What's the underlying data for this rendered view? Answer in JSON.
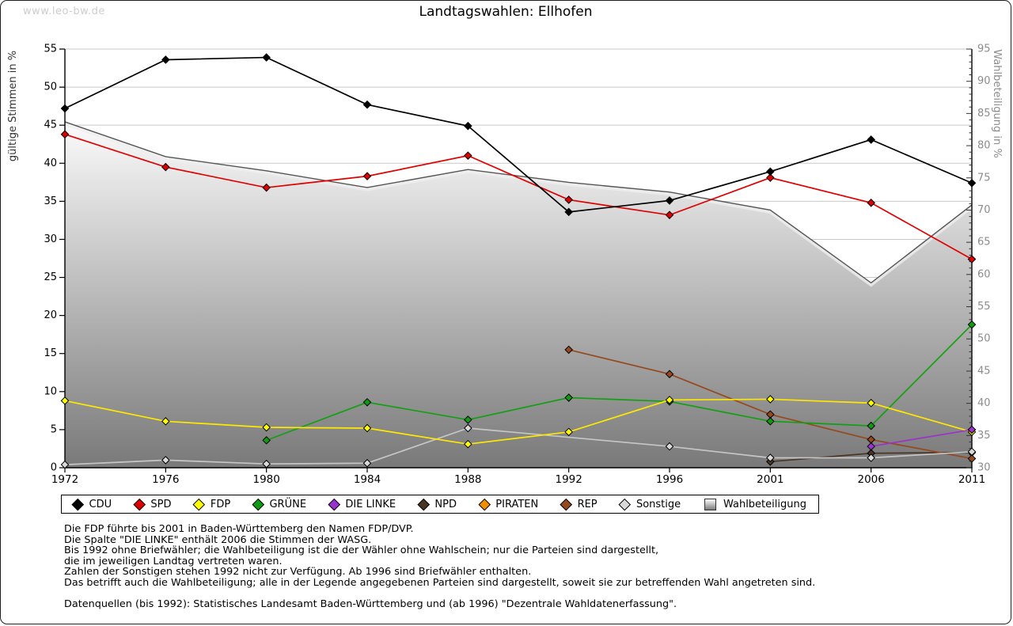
{
  "watermark": "www.leo-bw.de",
  "title": "Landtagswahlen: Ellhofen",
  "axes": {
    "left_title": "gültige Stimmen in %",
    "right_title": "Wahlbeteiligung in %",
    "left_min": 0,
    "left_max": 55,
    "left_step": 5,
    "right_min": 30,
    "right_max": 95,
    "right_step": 5,
    "left_tick_labels": [
      "0",
      "5",
      "10",
      "15",
      "20",
      "25",
      "30",
      "35",
      "40",
      "45",
      "50",
      "55"
    ],
    "right_tick_labels": [
      "30",
      "35",
      "40",
      "45",
      "50",
      "55",
      "60",
      "65",
      "70",
      "75",
      "80",
      "85",
      "90",
      "95"
    ]
  },
  "chart_data": {
    "type": "line",
    "x": [
      1972,
      1976,
      1980,
      1984,
      1988,
      1992,
      1996,
      2001,
      2006,
      2011
    ],
    "series": [
      {
        "name": "CDU",
        "color": "#000000",
        "marker": "#000000",
        "values": [
          47.2,
          53.6,
          53.9,
          47.7,
          44.9,
          33.6,
          35.1,
          38.9,
          43.1,
          37.4
        ]
      },
      {
        "name": "SPD",
        "color": "#e10000",
        "marker": "#dd0000",
        "values": [
          43.8,
          39.5,
          36.8,
          38.3,
          41.0,
          35.2,
          33.2,
          38.1,
          34.8,
          27.4
        ]
      },
      {
        "name": "FDP",
        "color": "#ffe800",
        "marker": "#ffff00",
        "values": [
          8.8,
          6.1,
          5.3,
          5.2,
          3.1,
          4.7,
          8.9,
          9.0,
          8.5,
          4.7
        ]
      },
      {
        "name": "GRÜNE",
        "color": "#12a012",
        "marker": "#0f9b0f",
        "values": [
          null,
          null,
          3.6,
          8.6,
          6.3,
          9.2,
          8.7,
          6.1,
          5.5,
          18.8
        ]
      },
      {
        "name": "DIE LINKE",
        "color": "#9a33cc",
        "marker": "#9a33cc",
        "values": [
          null,
          null,
          null,
          null,
          null,
          null,
          null,
          null,
          2.8,
          5.0
        ]
      },
      {
        "name": "NPD",
        "color": "#4a3626",
        "marker": "#4a3626",
        "values": [
          null,
          null,
          null,
          null,
          null,
          null,
          null,
          0.8,
          1.9,
          2.0
        ]
      },
      {
        "name": "PIRATEN",
        "color": "#ef8e00",
        "marker": "#ef8e00",
        "values": [
          null,
          null,
          null,
          null,
          null,
          null,
          null,
          null,
          null,
          null
        ]
      },
      {
        "name": "REP",
        "color": "#96491c",
        "marker": "#96491c",
        "values": [
          null,
          null,
          null,
          null,
          null,
          15.5,
          12.3,
          7.0,
          3.7,
          1.2
        ]
      },
      {
        "name": "Sonstige",
        "color": "#c6c6c6",
        "marker": "#d9d9d9",
        "values": [
          0.4,
          1.0,
          0.5,
          0.6,
          5.2,
          null,
          2.8,
          1.3,
          1.3,
          2.1
        ]
      }
    ],
    "turnout": {
      "name": "Wahlbeteiligung",
      "axis": "right",
      "values": [
        83.7,
        78.3,
        76.1,
        73.5,
        76.3,
        74.3,
        72.8,
        70.0,
        58.7,
        70.8
      ],
      "stroke": "#555555",
      "fill_top": "#fbfbfb",
      "fill_bottom": "#797979"
    },
    "grid_color": "#c9c9c9",
    "legend_position": "bottom"
  },
  "footnotes": [
    "Die FDP führte bis 2001 in Baden-Württemberg den Namen FDP/DVP.",
    "Die Spalte \"DIE LINKE\" enthält 2006 die Stimmen der WASG.",
    "Bis 1992 ohne Briefwähler; die Wahlbeteiligung ist die der Wähler ohne Wahlschein; nur die Parteien sind dargestellt,",
    "die im jeweiligen Landtag vertreten waren.",
    "Zahlen der Sonstigen stehen 1992 nicht zur Verfügung. Ab 1996 sind Briefwähler enthalten.",
    "Das betrifft auch die Wahlbeteiligung; alle in der Legende angegebenen Parteien sind dargestellt, soweit sie zur betreffenden Wahl angetreten sind.",
    "",
    "Datenquellen (bis 1992): Statistisches Landesamt Baden-Württemberg und (ab 1996) \"Dezentrale Wahldatenerfassung\"."
  ]
}
